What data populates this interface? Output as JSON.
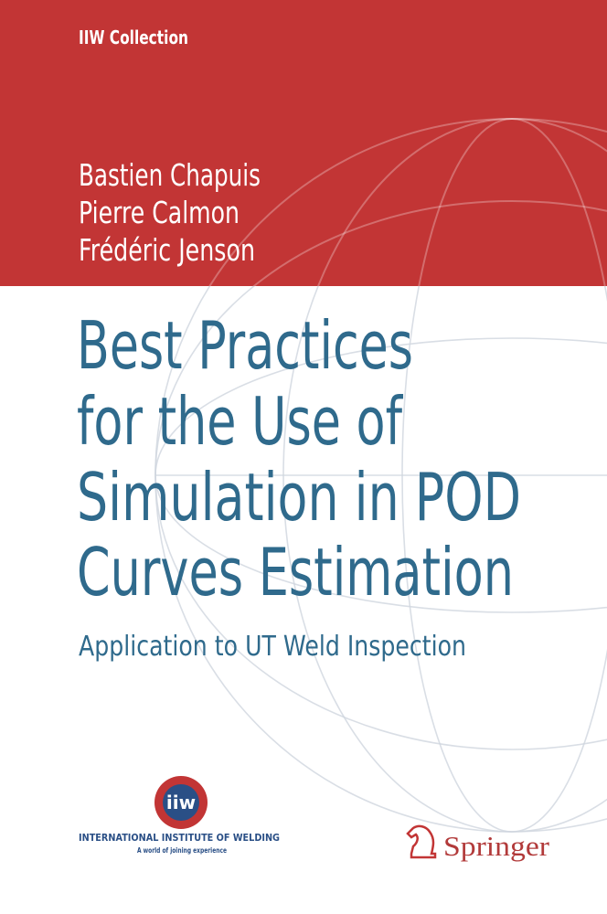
{
  "series": "IIW Collection",
  "authors": [
    "Bastien Chapuis",
    "Pierre Calmon",
    "Frédéric Jenson"
  ],
  "title": {
    "lines": [
      "Best Practices",
      "for the Use of",
      "Simulation in POD",
      "Curves Estimation"
    ]
  },
  "subtitle": "Application to UT Weld Inspection",
  "logos": {
    "iiw": {
      "acronym": "iiw",
      "name": "INTERNATIONAL INSTITUTE OF WELDING",
      "tagline": "A world of joining experience"
    },
    "springer": "Springer"
  }
}
